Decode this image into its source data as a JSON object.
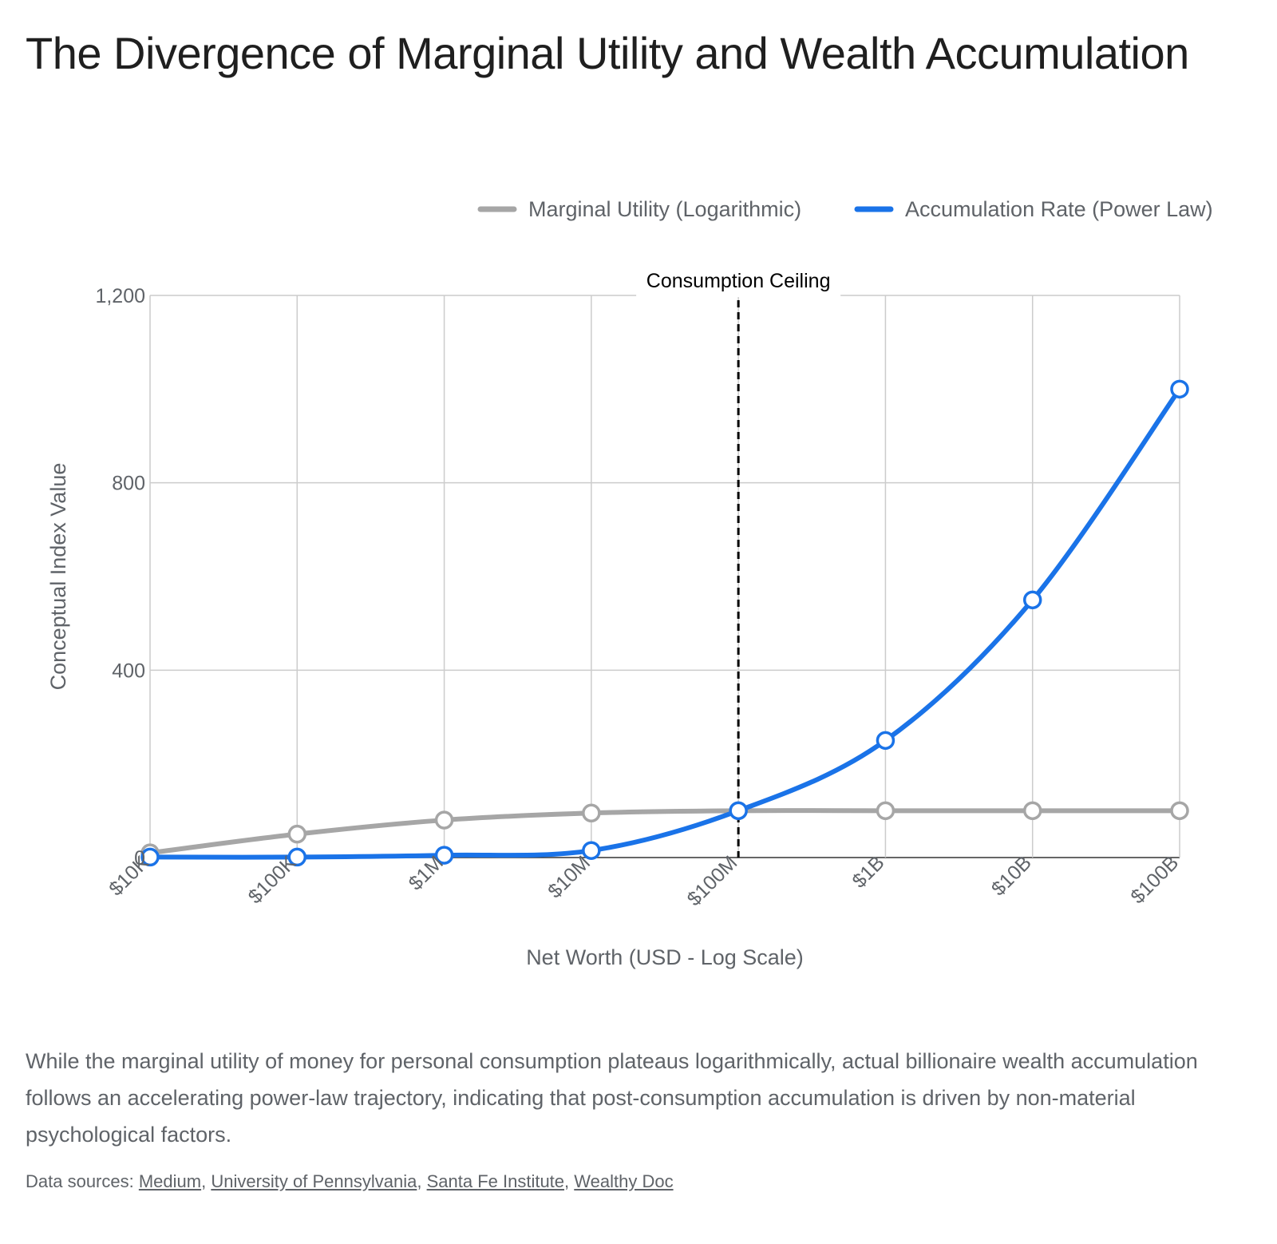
{
  "title": "The Divergence of Marginal Utility and Wealth Accumulation",
  "description": "While the marginal utility of money for personal consumption plateaus logarithmically, actual billionaire wealth accumulation follows an accelerating power-law trajectory, indicating that post-consumption accumulation is driven by non-material psychological factors.",
  "sources": {
    "prefix": "Data sources:",
    "links": [
      "Medium",
      "University of Pennsylvania",
      "Santa Fe Institute",
      "Wealthy Doc"
    ]
  },
  "chart_data": {
    "type": "line",
    "x_scale": "log",
    "categories": [
      "$10K",
      "$100K",
      "$1M",
      "$10M",
      "$100M",
      "$1B",
      "$10B",
      "$100B"
    ],
    "series": [
      {
        "name": "Marginal Utility (Logarithmic)",
        "color": "#a6a6a6",
        "values": [
          10,
          50,
          80,
          95,
          100,
          100,
          100,
          100
        ]
      },
      {
        "name": "Accumulation Rate (Power Law)",
        "color": "#1a73e8",
        "values": [
          1,
          1,
          5,
          15,
          100,
          250,
          550,
          1000
        ]
      }
    ],
    "xlabel": "Net Worth (USD - Log Scale)",
    "ylabel": "Conceptual Index Value",
    "ylim": [
      0,
      1200
    ],
    "yticks": [
      0,
      400,
      800,
      1200
    ],
    "ytick_labels": [
      "0",
      "400",
      "800",
      "1,200"
    ],
    "grid": true,
    "legend_position": "top-right",
    "annotation": {
      "label": "Consumption Ceiling",
      "x_category": "$100M",
      "style": "dashed",
      "color": "#000000"
    }
  }
}
